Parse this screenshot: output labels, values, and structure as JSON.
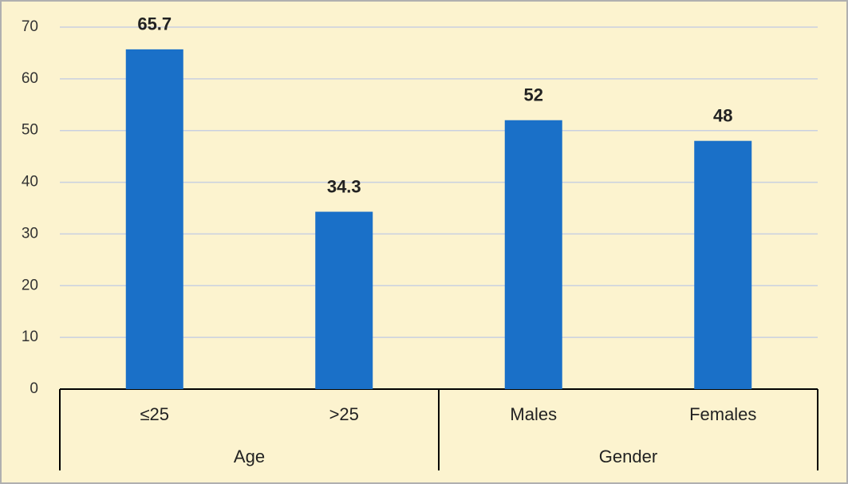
{
  "chart_data": {
    "type": "bar",
    "color": "#1a70c8",
    "grid": true,
    "ylim": [
      0,
      70
    ],
    "yticks": [
      0,
      10,
      20,
      30,
      40,
      50,
      60,
      70
    ],
    "groups": [
      {
        "name": "Age",
        "categories": [
          "≤25",
          ">25"
        ],
        "values": [
          65.7,
          34.3
        ]
      },
      {
        "name": "Gender",
        "categories": [
          "Males",
          "Females"
        ],
        "values": [
          52,
          48
        ]
      }
    ]
  }
}
